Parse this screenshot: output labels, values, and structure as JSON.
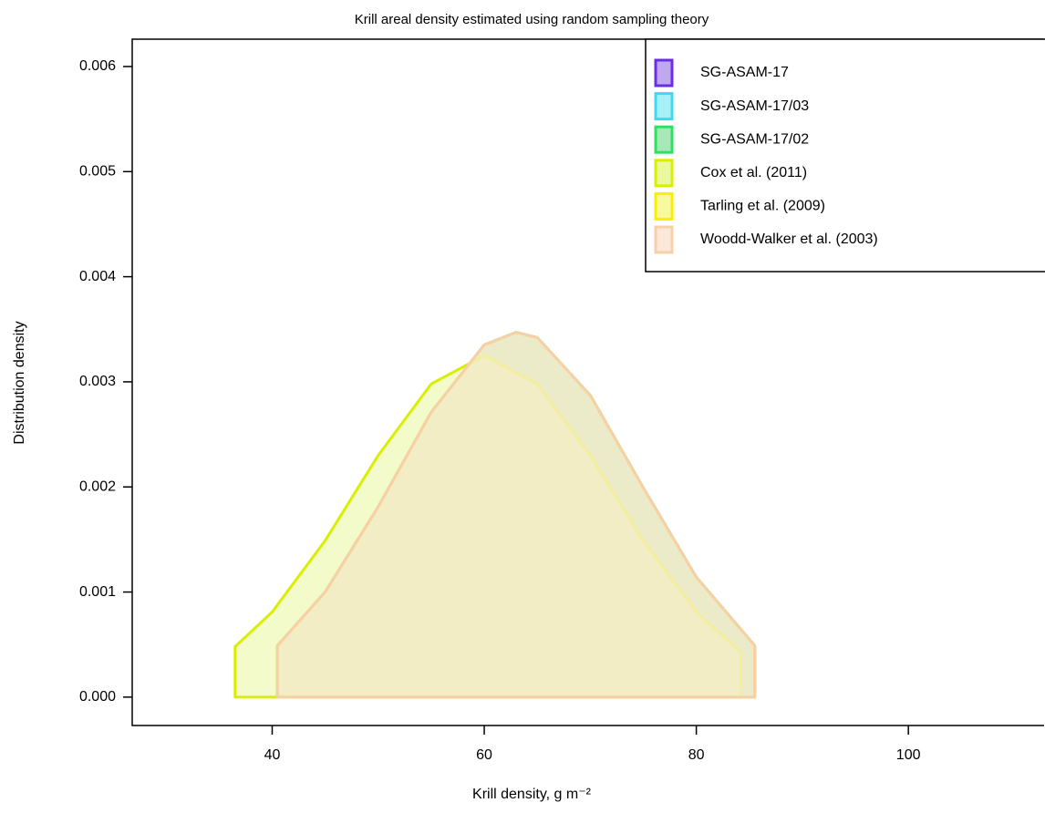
{
  "chart_data": {
    "type": "area",
    "title": "Krill areal density estimated using random sampling theory",
    "x_label": "Krill density, g m⁻²",
    "y_label": "Distribution density",
    "xlim": [
      26.8,
      112.8
    ],
    "ylim": [
      -0.00027,
      0.00626
    ],
    "xticks": [
      40,
      60,
      80,
      100
    ],
    "yticks": [
      {
        "value": 0,
        "label": "0.000"
      },
      {
        "value": 0.001,
        "label": "0.001"
      },
      {
        "value": 0.002,
        "label": "0.002"
      },
      {
        "value": 0.003,
        "label": "0.003"
      },
      {
        "value": 0.004,
        "label": "0.004"
      },
      {
        "value": 0.005,
        "label": "0.005"
      },
      {
        "value": 0.006,
        "label": "0.006"
      }
    ],
    "legend": "top-right",
    "series": [
      {
        "name": "SG-ASAM-17",
        "color": "#6a2ee8",
        "fill": "#c0a8f0",
        "x": [
          40.5,
          45,
          50,
          55,
          60,
          63,
          65,
          70,
          75,
          80,
          85.5
        ],
        "values": [
          0.00049,
          0.001,
          0.00181,
          0.00271,
          0.00335,
          0.00347,
          0.00342,
          0.00287,
          0.00199,
          0.00114,
          0.00049
        ]
      },
      {
        "name": "SG-ASAM-17/03",
        "color": "#40d8f0",
        "fill": "#a8f0f8",
        "x": [
          40.5,
          45,
          50,
          55,
          60,
          63,
          65,
          70,
          75,
          80,
          85.5
        ],
        "values": [
          0.00049,
          0.001,
          0.00181,
          0.00271,
          0.00335,
          0.00347,
          0.00342,
          0.00287,
          0.00199,
          0.00114,
          0.00049
        ]
      },
      {
        "name": "SG-ASAM-17/02",
        "color": "#30e060",
        "fill": "#a8e8b8",
        "x": [
          40.5,
          45,
          50,
          55,
          60,
          63,
          65,
          70,
          75,
          80,
          85.5
        ],
        "values": [
          0.00049,
          0.001,
          0.00181,
          0.00271,
          0.00335,
          0.00347,
          0.00342,
          0.00287,
          0.00199,
          0.00114,
          0.00049
        ]
      },
      {
        "name": "Cox et al. (2011)",
        "color": "#d8f000",
        "fill": "#eaf8a0",
        "x": [
          36.5,
          40,
          45,
          50,
          55,
          60,
          65,
          70,
          75,
          80,
          84.2
        ],
        "values": [
          0.00048,
          0.00081,
          0.00149,
          0.0023,
          0.00298,
          0.00325,
          0.00298,
          0.0023,
          0.00149,
          0.00081,
          0.00043
        ]
      },
      {
        "name": "Tarling et al. (2009)",
        "color": "#f8f000",
        "fill": "#f8f8a0",
        "x": [
          40.5,
          45,
          50,
          55,
          60,
          63,
          65,
          70,
          75,
          80,
          85.5
        ],
        "values": [
          0.00049,
          0.001,
          0.00181,
          0.00271,
          0.00335,
          0.00347,
          0.00342,
          0.00287,
          0.00199,
          0.00114,
          0.00049
        ]
      },
      {
        "name": "Woodd-Walker et al. (2003)",
        "color": "#f8d0a8",
        "fill": "#fce8d8",
        "x": [
          40.5,
          45,
          50,
          55,
          60,
          63,
          65,
          70,
          75,
          80,
          85.5
        ],
        "values": [
          0.00049,
          0.001,
          0.00181,
          0.00271,
          0.00335,
          0.00347,
          0.00342,
          0.00287,
          0.00199,
          0.00114,
          0.00049
        ]
      }
    ]
  }
}
